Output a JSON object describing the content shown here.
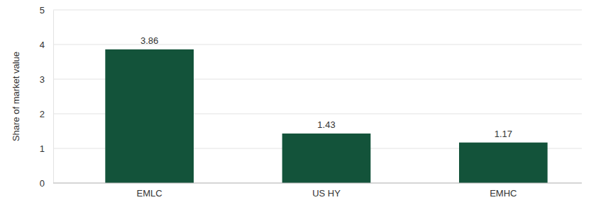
{
  "chart_data": {
    "type": "bar",
    "y_label": "Share of market value",
    "categories": [
      "EMLC",
      "US HY",
      "EMHC"
    ],
    "values": [
      3.86,
      1.43,
      1.17
    ],
    "color": "#13533a",
    "ylim": [
      0,
      5
    ],
    "yticks": [
      0,
      1,
      2,
      3,
      4,
      5
    ],
    "grid": true,
    "data_labels": true
  }
}
